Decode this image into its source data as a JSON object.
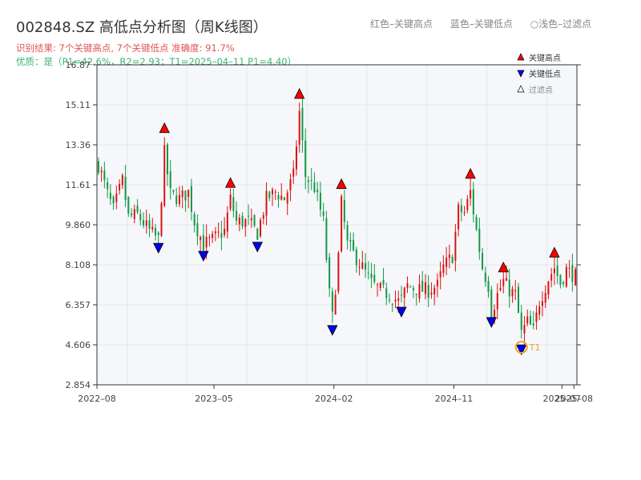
{
  "header": {
    "title": "002848.SZ 高低点分析图（周K线图）",
    "legend_high": "红色–关键高点",
    "legend_low": "蓝色–关键低点",
    "legend_filtered": "○浅色–过滤点",
    "result_text": "识别结果: 7个关键高点, 7个关键低点   准确度: 91.7%",
    "quality_text": "优质：是（P1=42.6%，R2=2.93；T1=2025–04–11 P1=4.40）"
  },
  "chart_data": {
    "type": "candlestick",
    "y_ticks": [
      "2.854",
      "4.606",
      "6.357",
      "8.108",
      "9.860",
      "11.61",
      "13.36",
      "15.11",
      "16.87"
    ],
    "ylim": [
      2.854,
      16.87
    ],
    "x_ticks": [
      {
        "label": "2022–08",
        "t": 0
      },
      {
        "label": "2023–05",
        "t": 39
      },
      {
        "label": "2024–02",
        "t": 79
      },
      {
        "label": "2024–11",
        "t": 119
      },
      {
        "label": "2025–07",
        "t": 155
      },
      {
        "label": "2025–08",
        "t": 159
      }
    ],
    "x_range": [
      0,
      160
    ],
    "legend": [
      "关键高点",
      "关键低点",
      "过滤点"
    ],
    "highs": [
      {
        "t": 22,
        "y": 13.9
      },
      {
        "t": 44,
        "y": 11.5
      },
      {
        "t": 67,
        "y": 15.4
      },
      {
        "t": 81,
        "y": 11.45
      },
      {
        "t": 124,
        "y": 11.9
      },
      {
        "t": 135,
        "y": 7.8
      },
      {
        "t": 152,
        "y": 8.45
      }
    ],
    "lows": [
      {
        "t": 20,
        "y": 9.05
      },
      {
        "t": 35,
        "y": 8.7
      },
      {
        "t": 53,
        "y": 9.1
      },
      {
        "t": 78,
        "y": 5.45
      },
      {
        "t": 101,
        "y": 6.25
      },
      {
        "t": 131,
        "y": 5.8
      },
      {
        "t": 141,
        "y": 4.6
      }
    ],
    "t1": {
      "t": 141,
      "y": 4.5,
      "label": "T1"
    },
    "anchors": [
      [
        0,
        12.5
      ],
      [
        3,
        11.2
      ],
      [
        5,
        10.5
      ],
      [
        8,
        11.8
      ],
      [
        10,
        10.2
      ],
      [
        13,
        10.3
      ],
      [
        17,
        9.6
      ],
      [
        20,
        9.2
      ],
      [
        22,
        13.0
      ],
      [
        24,
        11.2
      ],
      [
        27,
        11.0
      ],
      [
        30,
        11.3
      ],
      [
        32,
        10.0
      ],
      [
        35,
        9.0
      ],
      [
        38,
        9.2
      ],
      [
        40,
        9.4
      ],
      [
        42,
        9.6
      ],
      [
        44,
        11.0
      ],
      [
        46,
        10.0
      ],
      [
        50,
        10.0
      ],
      [
        53,
        9.5
      ],
      [
        56,
        11.0
      ],
      [
        59,
        11.3
      ],
      [
        62,
        11.0
      ],
      [
        65,
        12.0
      ],
      [
        67,
        14.8
      ],
      [
        69,
        12.0
      ],
      [
        72,
        11.5
      ],
      [
        75,
        10.0
      ],
      [
        77,
        6.8
      ],
      [
        78,
        5.8
      ],
      [
        80,
        8.5
      ],
      [
        81,
        10.8
      ],
      [
        83,
        9.0
      ],
      [
        86,
        8.4
      ],
      [
        88,
        8.0
      ],
      [
        91,
        7.3
      ],
      [
        94,
        7.0
      ],
      [
        97,
        6.8
      ],
      [
        100,
        6.5
      ],
      [
        101,
        6.6
      ],
      [
        103,
        7.2
      ],
      [
        107,
        7.0
      ],
      [
        110,
        7.0
      ],
      [
        113,
        7.2
      ],
      [
        115,
        8.0
      ],
      [
        118,
        8.5
      ],
      [
        120,
        10.5
      ],
      [
        122,
        10.4
      ],
      [
        124,
        11.3
      ],
      [
        126,
        9.6
      ],
      [
        128,
        8.0
      ],
      [
        130,
        7.2
      ],
      [
        131,
        6.0
      ],
      [
        133,
        6.8
      ],
      [
        135,
        7.4
      ],
      [
        137,
        7.0
      ],
      [
        139,
        6.8
      ],
      [
        141,
        5.1
      ],
      [
        143,
        5.6
      ],
      [
        145,
        5.2
      ],
      [
        147,
        6.5
      ],
      [
        150,
        7.5
      ],
      [
        152,
        8.0
      ],
      [
        154,
        7.3
      ],
      [
        156,
        7.9
      ],
      [
        158,
        7.7
      ],
      [
        159,
        7.6
      ]
    ],
    "colors": {
      "up": "#dd1111",
      "down": "#119944",
      "high_marker": "#ff0000",
      "low_marker": "#0000ee",
      "plot_bg": "#f5f7fa",
      "t1": "#f0a030"
    }
  }
}
